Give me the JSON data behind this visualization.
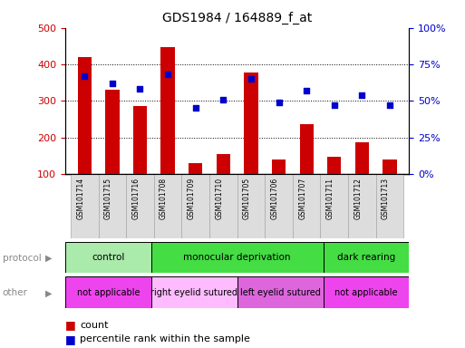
{
  "title": "GDS1984 / 164889_f_at",
  "samples": [
    "GSM101714",
    "GSM101715",
    "GSM101716",
    "GSM101708",
    "GSM101709",
    "GSM101710",
    "GSM101705",
    "GSM101706",
    "GSM101707",
    "GSM101711",
    "GSM101712",
    "GSM101713"
  ],
  "counts": [
    420,
    330,
    285,
    448,
    130,
    155,
    378,
    140,
    236,
    147,
    188,
    140
  ],
  "percentiles": [
    67,
    62,
    58,
    68,
    45,
    51,
    65,
    49,
    57,
    47,
    54,
    47
  ],
  "ylim_left": [
    100,
    500
  ],
  "ylim_right": [
    0,
    100
  ],
  "yticks_left": [
    100,
    200,
    300,
    400,
    500
  ],
  "yticks_right": [
    0,
    25,
    50,
    75,
    100
  ],
  "bar_color": "#cc0000",
  "dot_color": "#0000cc",
  "grid_lines": [
    200,
    300,
    400
  ],
  "protocol_row": [
    {
      "label": "control",
      "span": [
        0,
        3
      ],
      "color": "#aaeaaa"
    },
    {
      "label": "monocular deprivation",
      "span": [
        3,
        9
      ],
      "color": "#44dd44"
    },
    {
      "label": "dark rearing",
      "span": [
        9,
        12
      ],
      "color": "#44dd44"
    }
  ],
  "other_row": [
    {
      "label": "not applicable",
      "span": [
        0,
        3
      ],
      "color": "#ee44ee"
    },
    {
      "label": "right eyelid sutured",
      "span": [
        3,
        6
      ],
      "color": "#ffbbff"
    },
    {
      "label": "left eyelid sutured",
      "span": [
        6,
        9
      ],
      "color": "#dd66dd"
    },
    {
      "label": "not applicable",
      "span": [
        9,
        12
      ],
      "color": "#ee44ee"
    }
  ],
  "tick_label_color": "#cc0000",
  "right_tick_color": "#0000cc",
  "legend_items": [
    "count",
    "percentile rank within the sample"
  ],
  "protocol_label": "protocol",
  "other_label": "other",
  "sample_box_color": "#dddddd",
  "sample_box_edge": "#aaaaaa"
}
